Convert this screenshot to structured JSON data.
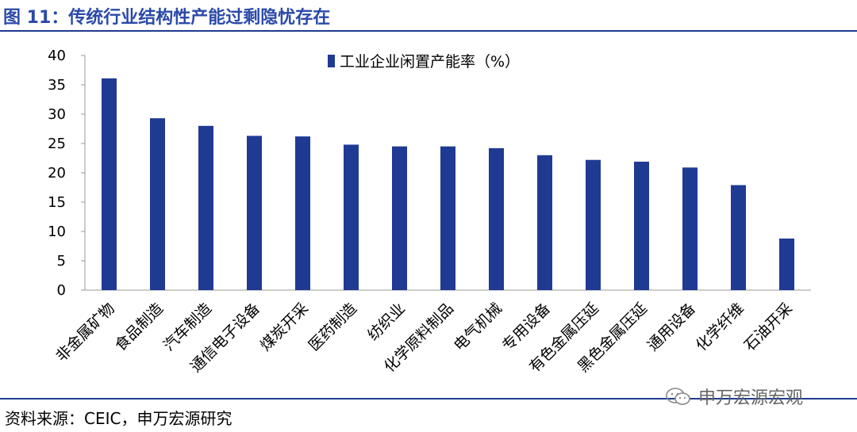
{
  "figure": {
    "title": "图 11：传统行业结构性产能过剩隐忧存在",
    "source": "资料来源：CEIC，申万宏源研究",
    "watermark": "申万宏源宏观"
  },
  "colors": {
    "bar": "#1f3a93",
    "title": "#2b4aa8",
    "rule": "#1f3b8f"
  },
  "chart_data": {
    "type": "bar",
    "categories": [
      "非金属矿物",
      "食品制造",
      "汽车制造",
      "通信电子设备",
      "煤炭开采",
      "医药制造",
      "纺织业",
      "化学原料制品",
      "电气机械",
      "专用设备",
      "有色金属压延",
      "黑色金属压延",
      "通用设备",
      "化学纤维",
      "石油开采"
    ],
    "series": [
      {
        "name": "工业企业闲置产能率（%）",
        "values": [
          36.1,
          29.3,
          28.0,
          26.3,
          26.2,
          24.8,
          24.5,
          24.5,
          24.2,
          23.0,
          22.2,
          21.9,
          20.9,
          17.9,
          8.8
        ]
      }
    ],
    "ylim": [
      0,
      40
    ],
    "yticks": [
      "0",
      "5",
      "10",
      "15",
      "20",
      "25",
      "30",
      "35",
      "40"
    ],
    "legend_position": "top-center",
    "grid": false
  }
}
